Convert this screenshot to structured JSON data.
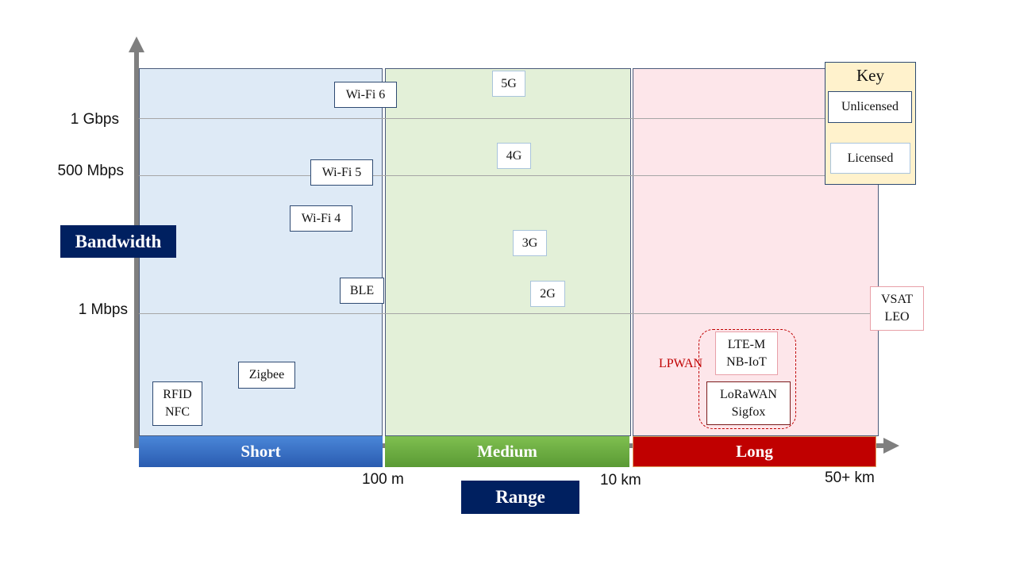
{
  "axes": {
    "y_title": "Bandwidth",
    "x_title": "Range",
    "y_ticks": [
      "1 Gbps",
      "500 Mbps",
      "1 Mbps"
    ],
    "x_ticks": [
      "100 m",
      "10 km",
      "50+ km"
    ]
  },
  "zones": {
    "short": "Short",
    "medium": "Medium",
    "long": "Long"
  },
  "technologies": {
    "wifi6": "Wi-Fi 6",
    "wifi5": "Wi-Fi 5",
    "wifi4": "Wi-Fi 4",
    "ble": "BLE",
    "zigbee": "Zigbee",
    "rfid": "RFID",
    "nfc": "NFC",
    "g5": "5G",
    "g4": "4G",
    "g3": "3G",
    "g2": "2G",
    "vsat": "VSAT",
    "leo": "LEO",
    "ltem": "LTE-M",
    "nbiot": "NB-IoT",
    "lorawan": "LoRaWAN",
    "sigfox": "Sigfox"
  },
  "lpwan_label": "LPWAN",
  "key": {
    "title": "Key",
    "unlicensed": "Unlicensed",
    "licensed": "Licensed"
  },
  "colors": {
    "short_bg": "#deeaf6",
    "medium_bg": "#e3f0d8",
    "long_bg": "#fde6ea",
    "title_navy": "#002060",
    "lpwan_red": "#c00000"
  }
}
